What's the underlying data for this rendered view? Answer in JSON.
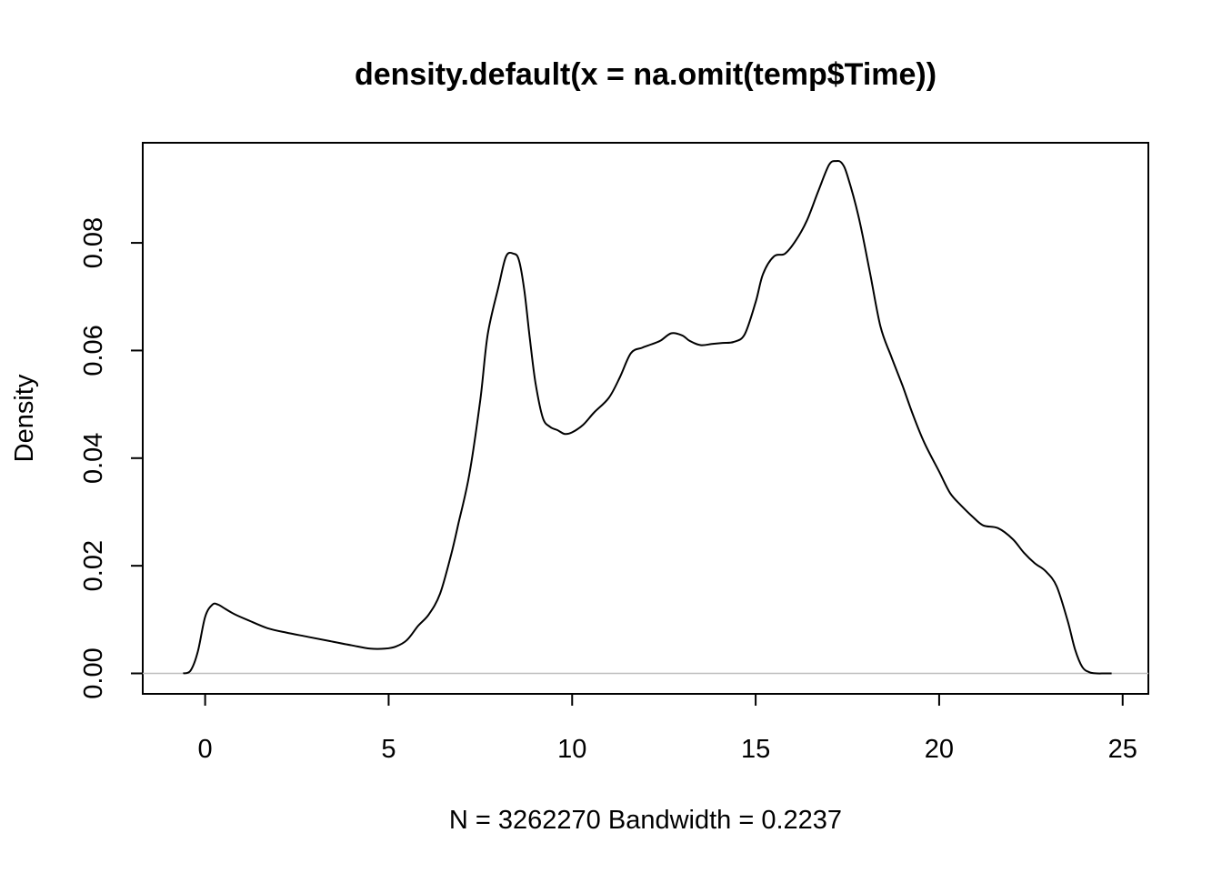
{
  "chart_data": {
    "type": "line",
    "title": "density.default(x = na.omit(temp$Time))",
    "xlabel": "N = 3262270   Bandwidth = 0.2237",
    "ylabel": "Density",
    "xlim": [
      -1.7,
      25.7
    ],
    "ylim": [
      -0.0038,
      0.0986
    ],
    "x_ticks": [
      0,
      5,
      10,
      15,
      20,
      25
    ],
    "x_tick_labels": [
      "0",
      "5",
      "10",
      "15",
      "20",
      "25"
    ],
    "y_ticks": [
      0.0,
      0.02,
      0.04,
      0.06,
      0.08
    ],
    "y_tick_labels": [
      "0.00",
      "0.02",
      "0.04",
      "0.06",
      "0.08"
    ],
    "zero_line": true,
    "grid": false,
    "line_color": "#000000",
    "zero_line_color": "#bebebe",
    "series": [
      {
        "x": [
          -0.6,
          -0.4,
          -0.2,
          0.0,
          0.2,
          0.35,
          0.5,
          0.8,
          1.2,
          1.7,
          2.2,
          2.8,
          3.4,
          4.0,
          4.5,
          4.9,
          5.2,
          5.5,
          5.8,
          6.1,
          6.4,
          6.7,
          6.9,
          7.2,
          7.5,
          7.7,
          8.0,
          8.2,
          8.4,
          8.55,
          8.7,
          8.85,
          9.0,
          9.2,
          9.4,
          9.6,
          9.8,
          10.0,
          10.3,
          10.6,
          11.0,
          11.3,
          11.6,
          11.9,
          12.1,
          12.4,
          12.7,
          13.0,
          13.2,
          13.5,
          13.8,
          14.1,
          14.4,
          14.7,
          15.0,
          15.2,
          15.5,
          15.8,
          16.1,
          16.4,
          16.7,
          17.0,
          17.2,
          17.35,
          17.5,
          17.8,
          18.1,
          18.4,
          18.7,
          19.0,
          19.3,
          19.6,
          20.0,
          20.3,
          20.6,
          20.9,
          21.2,
          21.6,
          22.0,
          22.3,
          22.6,
          22.9,
          23.2,
          23.5,
          23.7,
          23.9,
          24.1,
          24.3,
          24.5,
          24.7
        ],
        "y": [
          0.0,
          0.0005,
          0.004,
          0.0105,
          0.0128,
          0.0128,
          0.0122,
          0.011,
          0.0098,
          0.0084,
          0.0076,
          0.0068,
          0.006,
          0.0052,
          0.0046,
          0.0046,
          0.005,
          0.0062,
          0.0088,
          0.011,
          0.0148,
          0.022,
          0.0278,
          0.037,
          0.051,
          0.063,
          0.072,
          0.0775,
          0.078,
          0.0768,
          0.071,
          0.062,
          0.054,
          0.0475,
          0.0458,
          0.0452,
          0.0445,
          0.0448,
          0.0462,
          0.0485,
          0.0512,
          0.055,
          0.0595,
          0.0605,
          0.061,
          0.0618,
          0.0632,
          0.0628,
          0.0618,
          0.061,
          0.0612,
          0.0614,
          0.0616,
          0.063,
          0.069,
          0.0742,
          0.0775,
          0.078,
          0.0805,
          0.0842,
          0.0895,
          0.0945,
          0.0952,
          0.0948,
          0.0925,
          0.085,
          0.075,
          0.0645,
          0.0588,
          0.0535,
          0.0478,
          0.0428,
          0.0375,
          0.0335,
          0.0312,
          0.0292,
          0.0275,
          0.027,
          0.025,
          0.0225,
          0.0205,
          0.019,
          0.0162,
          0.0098,
          0.0045,
          0.0012,
          0.0002,
          0.0,
          0.0,
          0.0
        ]
      }
    ]
  }
}
